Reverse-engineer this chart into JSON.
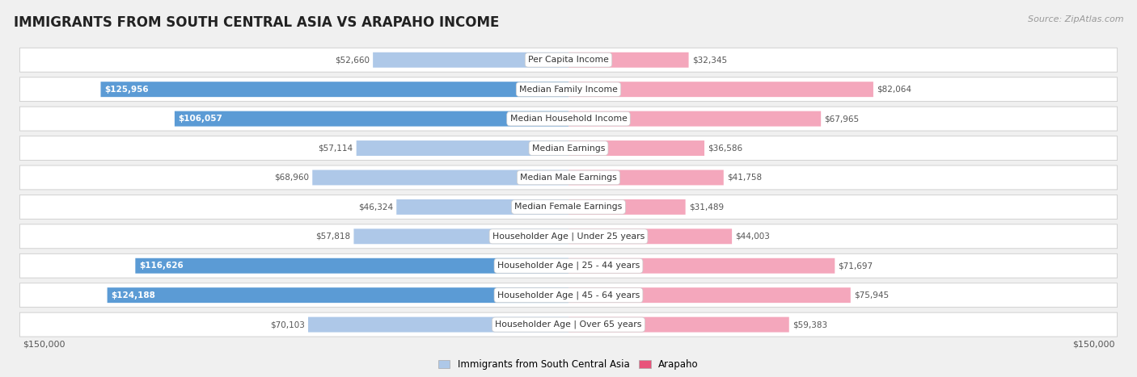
{
  "title": "IMMIGRANTS FROM SOUTH CENTRAL ASIA VS ARAPAHO INCOME",
  "source": "Source: ZipAtlas.com",
  "categories": [
    "Per Capita Income",
    "Median Family Income",
    "Median Household Income",
    "Median Earnings",
    "Median Male Earnings",
    "Median Female Earnings",
    "Householder Age | Under 25 years",
    "Householder Age | 25 - 44 years",
    "Householder Age | 45 - 64 years",
    "Householder Age | Over 65 years"
  ],
  "left_values": [
    52660,
    125956,
    106057,
    57114,
    68960,
    46324,
    57818,
    116626,
    124188,
    70103
  ],
  "right_values": [
    32345,
    82064,
    67965,
    36586,
    41758,
    31489,
    44003,
    71697,
    75945,
    59383
  ],
  "left_labels": [
    "$52,660",
    "$125,956",
    "$106,057",
    "$57,114",
    "$68,960",
    "$46,324",
    "$57,818",
    "$116,626",
    "$124,188",
    "$70,103"
  ],
  "right_labels": [
    "$32,345",
    "$82,064",
    "$67,965",
    "$36,586",
    "$41,758",
    "$31,489",
    "$44,003",
    "$71,697",
    "$75,945",
    "$59,383"
  ],
  "max_value": 150000,
  "left_color_full": "#5b9bd5",
  "left_color_light": "#aec8e8",
  "right_color_full": "#e8537a",
  "right_color_light": "#f4a7bc",
  "background_color": "#f0f0f0",
  "row_bg_color": "#ffffff",
  "row_border_color": "#cccccc",
  "legend_left": "Immigrants from South Central Asia",
  "legend_right": "Arapaho",
  "full_threshold": 90000,
  "axis_label_left": "$150,000",
  "axis_label_right": "$150,000",
  "label_color_inside": "#ffffff",
  "label_color_outside": "#555555",
  "category_label_color": "#333333",
  "title_color": "#222222",
  "source_color": "#999999"
}
